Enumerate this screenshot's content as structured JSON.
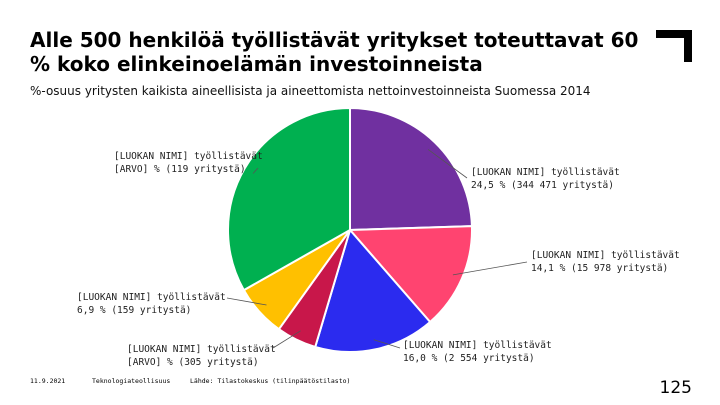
{
  "slide": {
    "title": "Alle 500 henkilöä työllistävät yritykset toteuttavat 60 % koko elinkeinoelämän investoinneista",
    "subtitle": "%-osuus yritysten kaikista aineellisista ja aineettomista nettoinvestoinneista Suomessa 2014",
    "footer": {
      "date": "11.9.2021",
      "org": "Teknologiateollisuus",
      "source": "Lähde: Tilastokeskus (tilinpäätöstilasto)"
    },
    "page_number": "125"
  },
  "chart_data": {
    "type": "pie",
    "start_angle_deg": 0,
    "direction": "clockwise",
    "slices": [
      {
        "value": 24.5,
        "color": "#7030A0",
        "label_line1": "[LUOKAN NIMI] työllistävät",
        "label_line2": "24,5 % (344 471 yritystä)"
      },
      {
        "value": 14.1,
        "color": "#FF4470",
        "label_line1": "[LUOKAN NIMI] työllistävät",
        "label_line2": "14,1 % (15 978 yritystä)"
      },
      {
        "value": 16.0,
        "color": "#2B2BEF",
        "label_line1": "[LUOKAN NIMI] työllistävät",
        "label_line2": "16,0 % (2 554 yritystä)"
      },
      {
        "value": 5.3,
        "color": "#C8174A",
        "label_line1": "[LUOKAN NIMI] työllistävät",
        "label_line2": "[ARVO] % (305 yritystä)"
      },
      {
        "value": 6.9,
        "color": "#FFC000",
        "label_line1": "[LUOKAN NIMI] työllistävät",
        "label_line2": "6,9 % (159 yritystä)"
      },
      {
        "value": 33.2,
        "color": "#00B050",
        "label_line1": "[LUOKAN NIMI] työllistävät",
        "label_line2": "[ARVO] % (119 yritystä)"
      }
    ]
  }
}
